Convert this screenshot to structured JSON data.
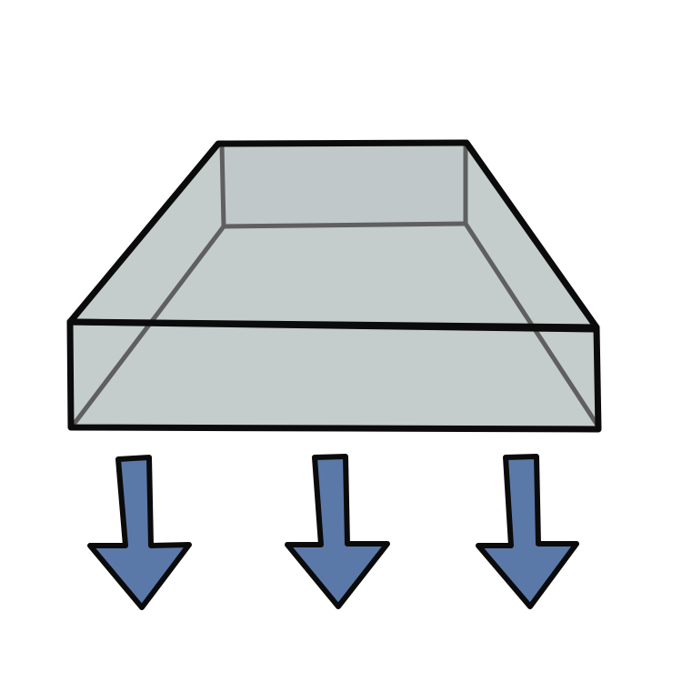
{
  "illustration": {
    "subject": "transparent-box-with-downward-arrows",
    "colors": {
      "background": "#ffffff",
      "box_fill": "#c5cccc",
      "box_fill_dark": "#b9c1c2",
      "outline": "#0b0b0b",
      "hidden_edge": "#5f5f5f",
      "arrow_fill": "#5b79a8"
    },
    "arrow_count": 3,
    "icons": [
      "box-icon",
      "arrow-down-icon",
      "arrow-down-icon",
      "arrow-down-icon"
    ]
  }
}
